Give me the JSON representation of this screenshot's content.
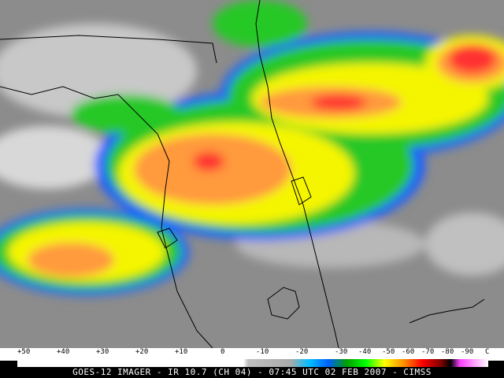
{
  "colorbar": {
    "labels": [
      "+50",
      "+40",
      "+30",
      "+20",
      "+10",
      "0",
      "-10",
      "-20",
      "-30",
      "-40",
      "-50",
      "-60",
      "-70",
      "-80",
      "-90",
      "C"
    ]
  },
  "caption": "GOES-12 IMAGER - IR 10.7 (CH 04) - 07:45 UTC 02 FEB 2007 - CIMSS",
  "colors": {
    "cloud_warm": "#ffffff",
    "cloud_cold_green": "#2cc82c",
    "cloud_yellow": "#ffff00",
    "cloud_orange": "#ff9030",
    "cloud_red": "#ff2020",
    "cloud_blue": "#1060ff",
    "land_gray": "#8a8a8a"
  }
}
